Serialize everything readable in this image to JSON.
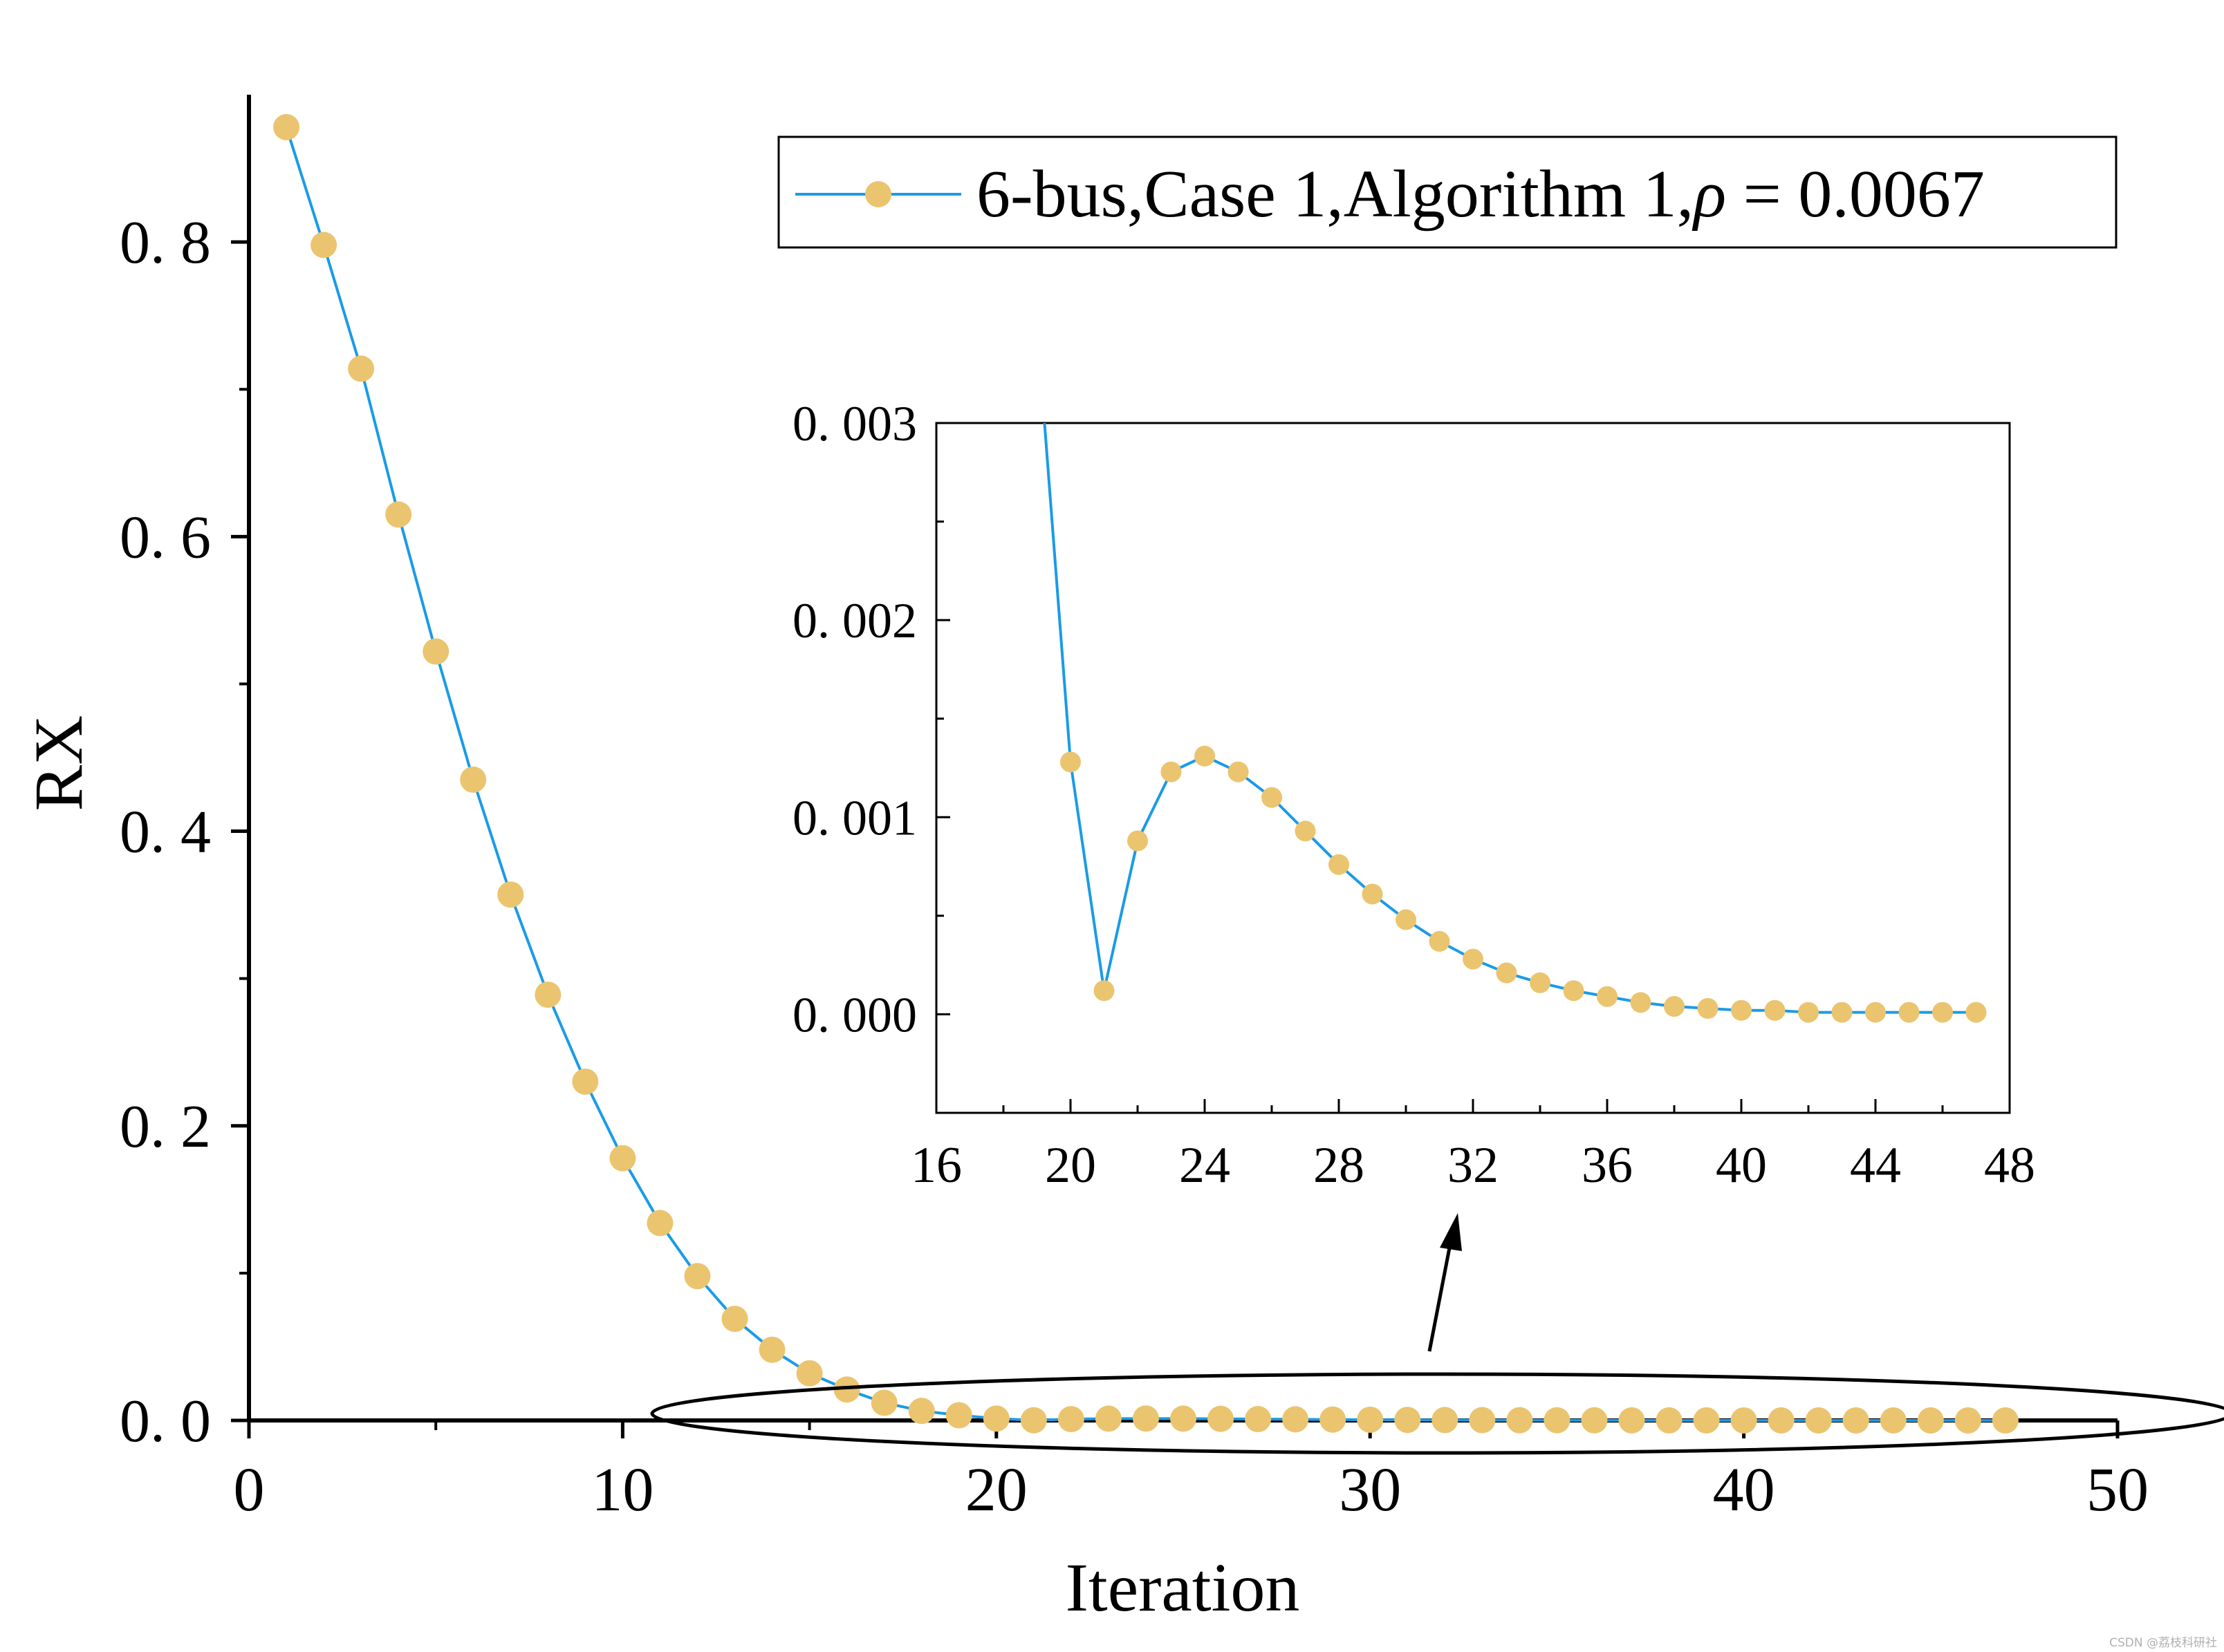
{
  "chart_data": [
    {
      "id": "main",
      "type": "line",
      "title": "",
      "xlabel": "Iteration",
      "ylabel": "RX",
      "xlim": [
        0,
        50
      ],
      "ylim": [
        0,
        0.9
      ],
      "xticks": [
        0,
        10,
        20,
        30,
        40,
        50
      ],
      "xtick_labels": [
        "0",
        "10",
        "20",
        "30",
        "40",
        "50"
      ],
      "yticks": [
        0,
        0.2,
        0.4,
        0.6,
        0.8
      ],
      "ytick_labels": [
        "0. 0",
        "0. 2",
        "0. 4",
        "0. 6",
        "0. 8"
      ],
      "grid": false,
      "legend": "top-right",
      "series": [
        {
          "name": "6-bus,Case 1,Algorithm 1,",
          "legend_symbol": "ρ",
          "legend_suffix": " = 0.0067",
          "line_color": "#1a9be6",
          "marker_color": "#ebc46f",
          "x": [
            1,
            2,
            3,
            4,
            5,
            6,
            7,
            8,
            9,
            10,
            11,
            12,
            13,
            14,
            15,
            16,
            17,
            18,
            19,
            20,
            21,
            22,
            23,
            24,
            25,
            26,
            27,
            28,
            29,
            30,
            31,
            32,
            33,
            34,
            35,
            36,
            37,
            38,
            39,
            40,
            41,
            42,
            43,
            44,
            45,
            46,
            47
          ],
          "y": [
            0.878,
            0.798,
            0.714,
            0.615,
            0.522,
            0.435,
            0.357,
            0.289,
            0.23,
            0.178,
            0.134,
            0.098,
            0.069,
            0.048,
            0.032,
            0.021,
            0.012,
            0.0065,
            0.0035,
            0.00128,
            0.00012,
            0.00088,
            0.00123,
            0.00131,
            0.00123,
            0.0011,
            0.00093,
            0.00076,
            0.00061,
            0.00048,
            0.00037,
            0.00028,
            0.00021,
            0.00016,
            0.00012,
            9e-05,
            6e-05,
            4e-05,
            3e-05,
            2e-05,
            2e-05,
            1e-05,
            1e-05,
            1e-05,
            1e-05,
            1e-05,
            1e-05
          ]
        }
      ]
    },
    {
      "id": "inset",
      "type": "line",
      "title": "",
      "xlim": [
        16,
        48
      ],
      "ylim": [
        -0.0005,
        0.003
      ],
      "xticks": [
        16,
        20,
        24,
        28,
        32,
        36,
        40,
        44,
        48
      ],
      "xtick_labels": [
        "16",
        "20",
        "24",
        "28",
        "32",
        "36",
        "40",
        "44",
        "48"
      ],
      "yticks": [
        0,
        0.001,
        0.002,
        0.003
      ],
      "ytick_labels": [
        "0. 000",
        "0. 001",
        "0. 002",
        "0. 003"
      ],
      "grid": false,
      "series_ref": "main",
      "x_range": [
        19,
        47
      ]
    }
  ],
  "annotations": {
    "zoom_ellipse": "highlighted region iterations 16-48",
    "arrow": "points to inset"
  },
  "watermark": "CSDN @荔枝科研社"
}
